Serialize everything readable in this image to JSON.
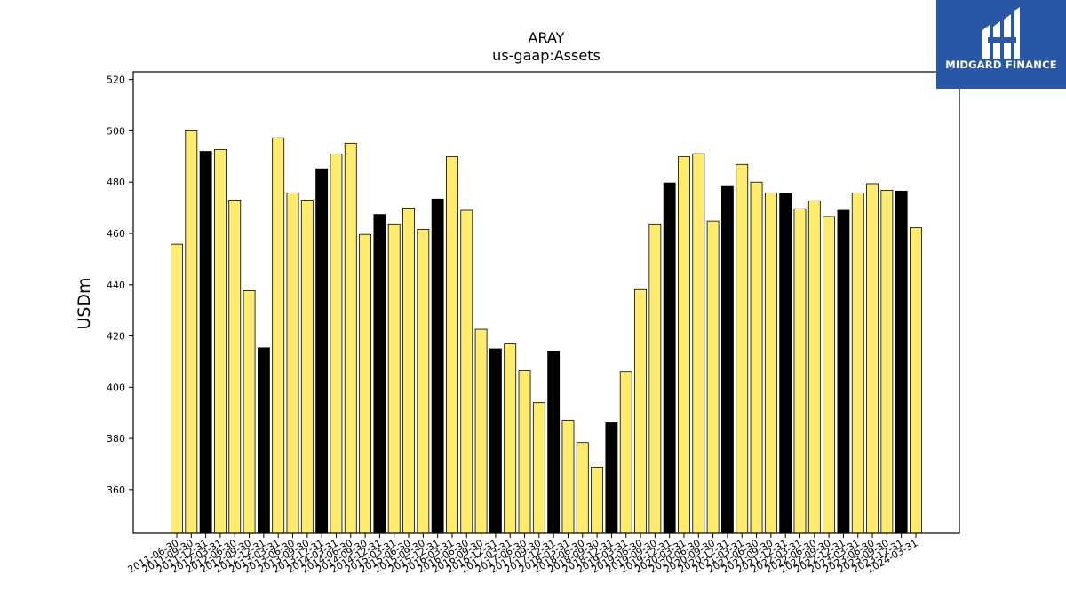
{
  "chart_data": {
    "type": "bar",
    "title": "ARAY",
    "subtitle": "us-gaap:Assets",
    "xlabel": "",
    "ylabel": "USDm",
    "ylim": [
      343,
      523
    ],
    "yticks": [
      360,
      380,
      400,
      420,
      440,
      460,
      480,
      500,
      520
    ],
    "grid": false,
    "colors": {
      "q1_q3": "#ffec6e",
      "q4": "#000000",
      "edge": "#000000"
    },
    "categories": [
      "2011-06-30",
      "2011-09-30",
      "2011-12-31",
      "2012-03-31",
      "2012-06-30",
      "2012-09-30",
      "2012-12-31",
      "2013-03-31",
      "2013-06-30",
      "2013-09-30",
      "2013-12-31",
      "2014-03-31",
      "2014-06-30",
      "2014-09-30",
      "2014-12-31",
      "2015-03-31",
      "2015-06-30",
      "2015-09-30",
      "2015-12-31",
      "2016-03-31",
      "2016-06-30",
      "2016-09-30",
      "2016-12-31",
      "2017-03-31",
      "2017-06-30",
      "2017-09-30",
      "2017-12-31",
      "2018-03-31",
      "2018-06-30",
      "2018-09-30",
      "2018-12-31",
      "2019-03-31",
      "2019-06-30",
      "2019-09-30",
      "2019-12-31",
      "2020-03-31",
      "2020-06-30",
      "2020-09-30",
      "2020-12-31",
      "2021-03-31",
      "2021-06-30",
      "2021-09-30",
      "2021-12-31",
      "2022-03-31",
      "2022-06-30",
      "2022-09-30",
      "2022-12-31",
      "2023-03-31",
      "2023-06-30",
      "2023-09-30",
      "2023-12-31",
      "2024-03-31"
    ],
    "values": [
      455.8,
      500.0,
      492.0,
      492.7,
      473.0,
      437.7,
      415.4,
      497.3,
      475.8,
      473.0,
      485.2,
      491.0,
      495.2,
      459.6,
      467.4,
      463.7,
      469.9,
      461.6,
      473.4,
      489.9,
      469.0,
      422.6,
      415.0,
      416.9,
      406.5,
      394.0,
      414.0,
      387.1,
      378.4,
      368.8,
      386.1,
      406.1,
      438.1,
      463.7,
      479.7,
      489.9,
      491.1,
      464.8,
      478.3,
      486.9,
      480.0,
      475.8,
      475.5,
      469.6,
      472.7,
      466.6,
      469.0,
      475.8,
      479.4,
      476.8,
      476.5,
      462.2
    ]
  },
  "logo": {
    "text": "MIDGARD FINANCE",
    "icon": "midgard-logo-icon",
    "background": "#2a56a6"
  }
}
